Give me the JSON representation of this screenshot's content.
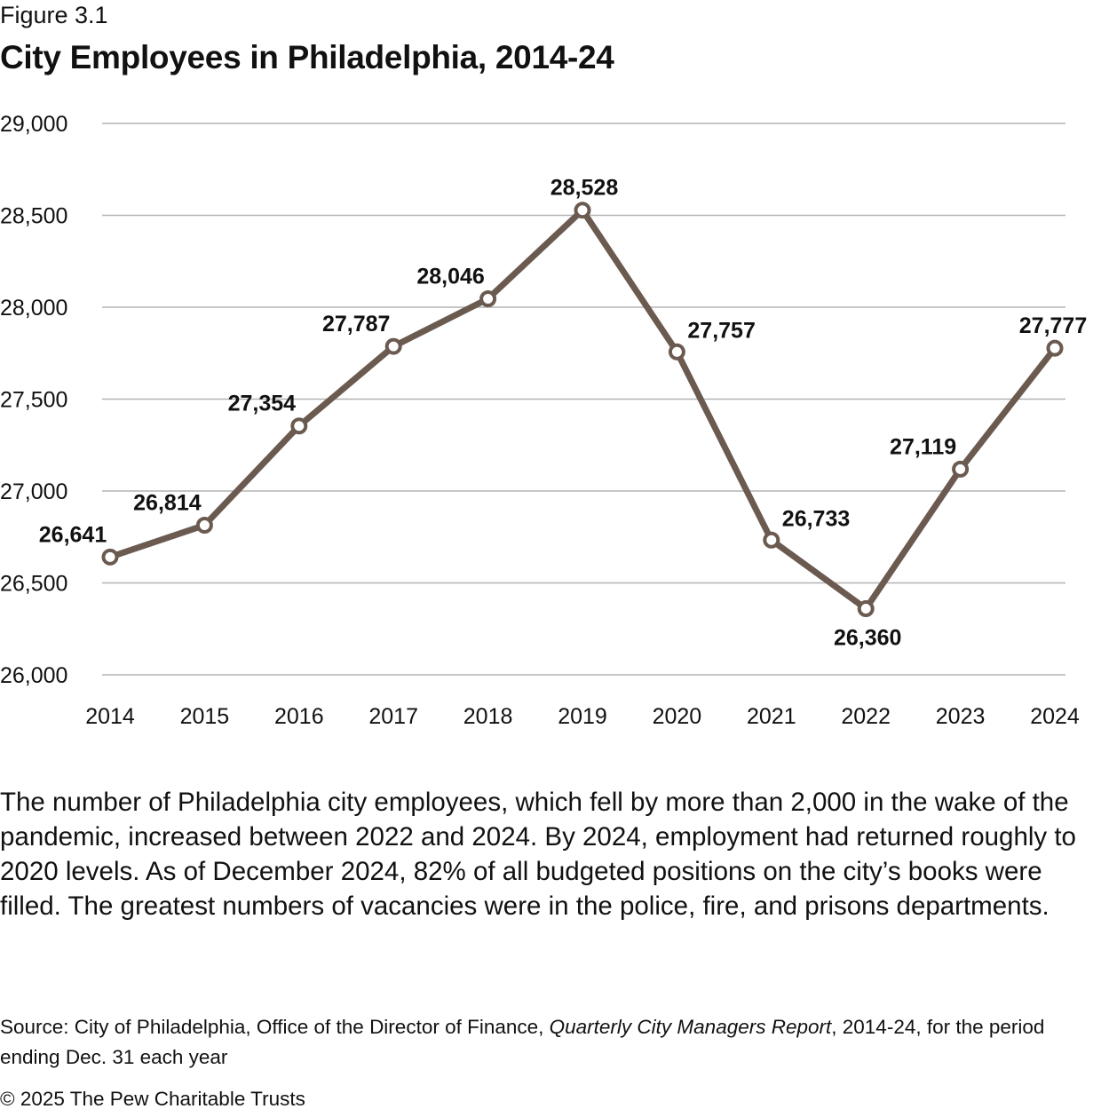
{
  "figure_label": "Figure 3.1",
  "chart_data": {
    "type": "line",
    "title": "City Employees in Philadelphia, 2014-24",
    "xlabel": "",
    "ylabel": "",
    "categories": [
      "2014",
      "2015",
      "2016",
      "2017",
      "2018",
      "2019",
      "2020",
      "2021",
      "2022",
      "2023",
      "2024"
    ],
    "series": [
      {
        "name": "City employees",
        "values": [
          26641,
          26814,
          27354,
          27787,
          28046,
          28528,
          27757,
          26733,
          26360,
          27119,
          27777
        ],
        "data_labels": [
          "26,641",
          "26,814",
          "27,354",
          "27,787",
          "28,046",
          "28,528",
          "27,757",
          "26,733",
          "26,360",
          "27,119",
          "27,777"
        ]
      }
    ],
    "ylim": [
      26000,
      29000
    ],
    "yticks": [
      26000,
      26500,
      27000,
      27500,
      28000,
      28500,
      29000
    ],
    "ytick_labels": [
      "26,000",
      "26,500",
      "27,000",
      "27,500",
      "28,000",
      "28,500",
      "29,000"
    ],
    "grid": true,
    "legend": "none"
  },
  "description": "The number of Philadelphia city employees, which fell by more than 2,000 in the wake of the pandemic, increased between 2022 and 2024. By 2024, employment had returned roughly to 2020 levels. As of December 2024, 82% of all budgeted positions on the city’s books were filled. The greatest numbers of vacancies were in the police, fire, and prisons departments.",
  "source": {
    "prefix": "Source: City of Philadelphia, Office of the Director of Finance, ",
    "publication": "Quarterly City Managers Report",
    "suffix": ", 2014-24, for the period ending Dec. 31 each year"
  },
  "copyright": "© 2025 The Pew Charitable Trusts",
  "colors": {
    "line": "#6b5a50",
    "grid": "#b3b3b3",
    "marker_fill": "#ffffff",
    "text": "#111111"
  }
}
